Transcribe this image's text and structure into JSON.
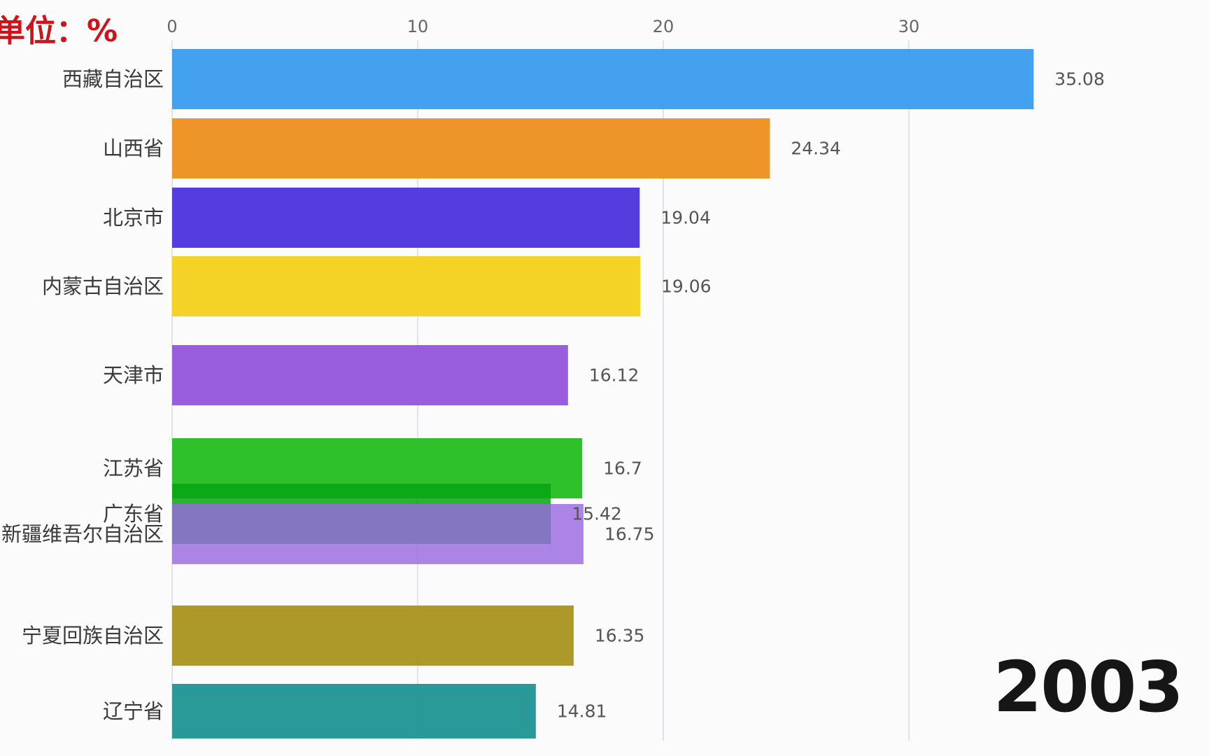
{
  "header": {
    "unit_label": "单位：%"
  },
  "year": "2003",
  "colors": {
    "gridline": "#d7dde3",
    "unit_text": "#d0121b",
    "year_text": "#161616"
  },
  "chart_data": {
    "type": "bar",
    "orientation": "horizontal",
    "title": "",
    "xlabel": "",
    "ylabel": "",
    "xlim": [
      0,
      36
    ],
    "x_ticks": [
      0,
      10,
      20,
      30
    ],
    "grid": true,
    "value_unit": "%",
    "bars": [
      {
        "category": "西藏自治区",
        "value": 35.08,
        "value_label": "35.08",
        "color": "#3a9cee",
        "opacity": 0.95
      },
      {
        "category": "山西省",
        "value": 24.34,
        "value_label": "24.34",
        "color": "#ec8f1c",
        "opacity": 0.95
      },
      {
        "category": "北京市",
        "value": 19.04,
        "value_label": "19.04",
        "color": "#4c31dd",
        "opacity": 0.95
      },
      {
        "category": "内蒙古自治区",
        "value": 19.06,
        "value_label": "19.06",
        "color": "#f4d01a",
        "opacity": 0.95
      },
      {
        "category": "天津市",
        "value": 16.12,
        "value_label": "16.12",
        "color": "#9355dc",
        "opacity": 0.95
      },
      {
        "category": "江苏省",
        "value": 16.7,
        "value_label": "16.7",
        "color": "#1dbc1a",
        "opacity": 0.92
      },
      {
        "category": "广东省",
        "value": 15.42,
        "value_label": "15.42",
        "color": "#05a413",
        "opacity": 0.85
      },
      {
        "category": "新疆维吾尔自治区",
        "value": 16.75,
        "value_label": "16.75",
        "color": "#9a69e0",
        "opacity": 0.82
      },
      {
        "category": "宁夏回族自治区",
        "value": 16.35,
        "value_label": "16.35",
        "color": "#a8931e",
        "opacity": 0.95
      },
      {
        "category": "辽宁省",
        "value": 14.81,
        "value_label": "14.81",
        "color": "#1e9591",
        "opacity": 0.95
      }
    ]
  }
}
